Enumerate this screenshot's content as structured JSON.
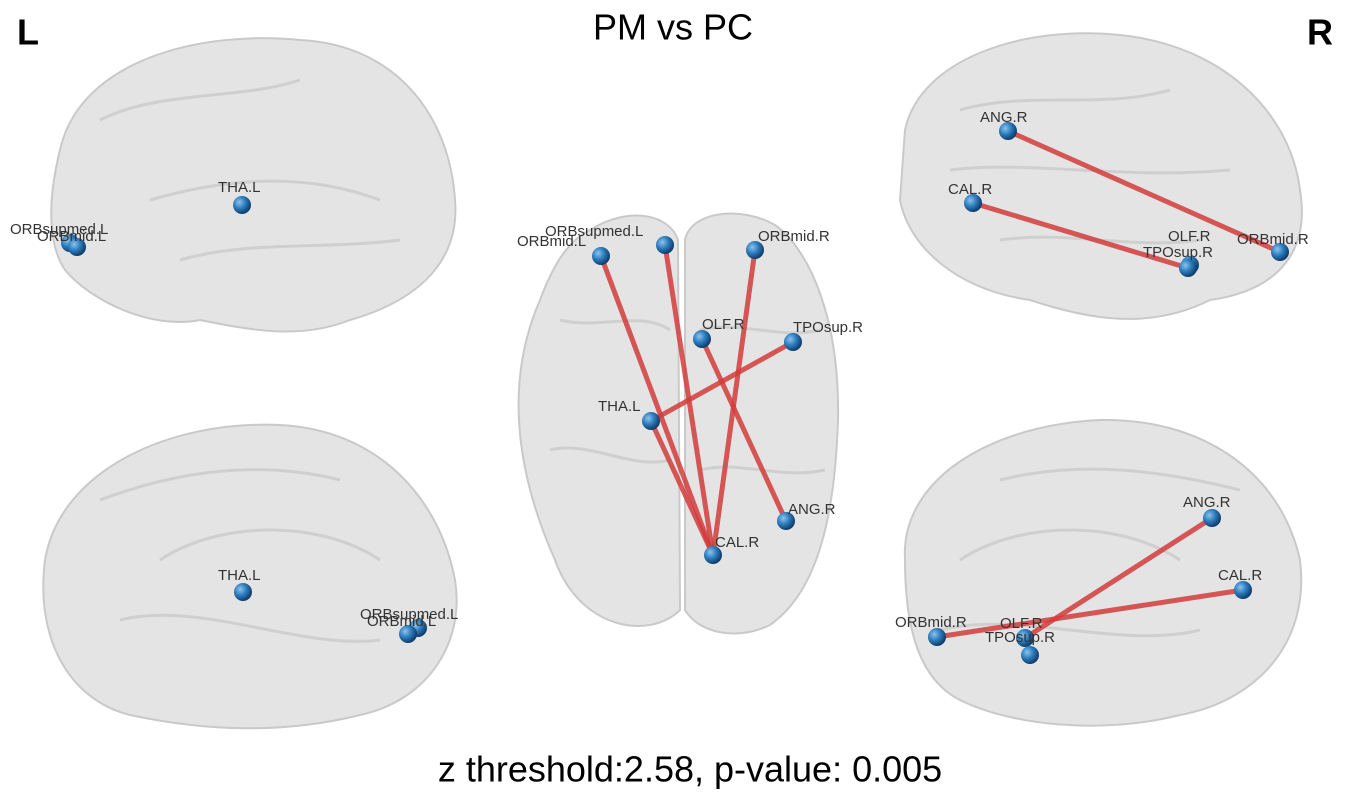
{
  "header": {
    "left_side": "L",
    "title": "PM vs PC",
    "right_side": "R"
  },
  "views": [
    {
      "nodes": [
        {
          "label": "ORBsupmed.L"
        },
        {
          "label": "ORBmid.L"
        },
        {
          "label": "THA.L"
        }
      ]
    },
    {
      "nodes": [
        {
          "label": "THA.L"
        },
        {
          "label": "ORBsupmed.L"
        },
        {
          "label": "ORBmid.L"
        }
      ]
    },
    {
      "nodes": [
        {
          "label": "ORBsupmed.L"
        },
        {
          "label": "ORBmid.L"
        },
        {
          "label": "ORBmid.R"
        },
        {
          "label": "OLF.R"
        },
        {
          "label": "TPOsup.R"
        },
        {
          "label": "THA.L"
        },
        {
          "label": "ANG.R"
        },
        {
          "label": "CAL.R"
        }
      ]
    },
    {
      "nodes": [
        {
          "label": "ANG.R"
        },
        {
          "label": "CAL.R"
        },
        {
          "label": "OLF.R"
        },
        {
          "label": "ORBmid.R"
        },
        {
          "label": "TPOsup.R"
        }
      ]
    },
    {
      "nodes": [
        {
          "label": "ANG.R"
        },
        {
          "label": "CAL.R"
        },
        {
          "label": "ORBmid.R"
        },
        {
          "label": "OLF.R"
        },
        {
          "label": "TPOsup.R"
        }
      ]
    }
  ],
  "footer": "z threshold:2.58, p-value: 0.005"
}
